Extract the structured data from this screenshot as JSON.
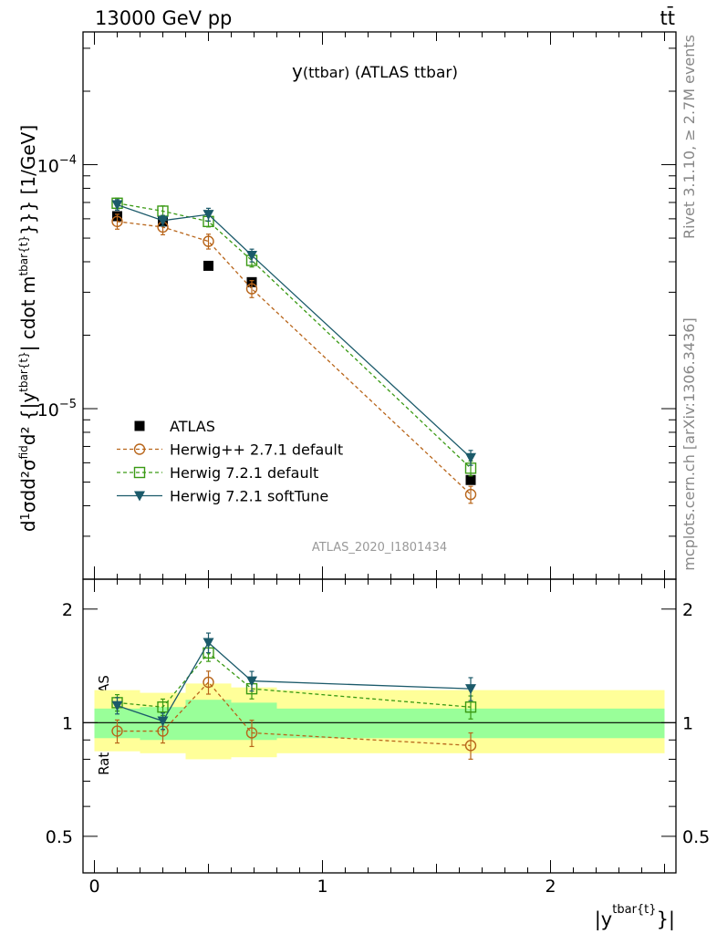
{
  "header": {
    "left": "13000 GeV pp",
    "right": "tt̄"
  },
  "side_labels": {
    "rivet": "Rivet 3.1.10, ≥ 2.7M events",
    "mcplots": "mcplots.cern.ch [arXiv:1306.3436]"
  },
  "watermark": "ATLAS_2020_I1801434",
  "colors": {
    "atlas": "#000000",
    "herwigpp": "#b8651a",
    "herwig721": "#3a9a14",
    "softtune": "#1b5a6a",
    "band_inner": "#99ff99",
    "band_outer": "#ffff99"
  },
  "chart_data": [
    {
      "type": "scatter",
      "title_main": "y",
      "title_small": "(ttbar)",
      "title_rest": " (ATLAS ttbar)",
      "ylabel": "d1dd²σfid/d²{|ytbar{t}|} cdot mtbar{t}}}} [1/GeV]",
      "ylabel_parts": {
        "p1": "d",
        "p2": "1",
        "p3": "σ",
        "p4": "d",
        "p5": "d²σ",
        "p6": "fid",
        "p7": "d² {|y",
        "p8": "tbar{t}",
        "p9": "| cdot m",
        "p10": "tbar{t}",
        "p11": "}}} [1/GeV]"
      },
      "xlim": [
        -0.05,
        2.55
      ],
      "ylim": [
        2e-06,
        0.00035
      ],
      "log_y": true,
      "y_ticks": [
        {
          "value": 0.0001,
          "mant": "10",
          "exp": "−4"
        },
        {
          "value": 1e-05,
          "mant": "10",
          "exp": "−5"
        }
      ],
      "legend": {
        "placement": "lower-left",
        "entries": [
          {
            "key": "atlas",
            "label": "ATLAS"
          },
          {
            "key": "herwigpp",
            "label": "Herwig++ 2.7.1 default"
          },
          {
            "key": "herwig721",
            "label": "Herwig 7.2.1 default"
          },
          {
            "key": "softtune",
            "label": "Herwig 7.2.1 softTune"
          }
        ]
      },
      "x": [
        0.1,
        0.3,
        0.5,
        0.69,
        1.65
      ],
      "x_edges": [
        0.0,
        0.2,
        0.4,
        0.6,
        0.8,
        2.5
      ],
      "series": [
        {
          "key": "atlas",
          "name": "ATLAS",
          "marker": "square-filled",
          "line": "none",
          "values": [
            6.15e-05,
            5.85e-05,
            3.85e-05,
            3.3e-05,
            5.1e-06
          ]
        },
        {
          "key": "herwigpp",
          "name": "Herwig++ 2.7.1 default",
          "marker": "circle-open",
          "line": "dashed",
          "values": [
            5.85e-05,
            5.55e-05,
            4.85e-05,
            3.1e-05,
            4.45e-06
          ],
          "err": [
            0.07,
            0.07,
            0.07,
            0.08,
            0.08
          ]
        },
        {
          "key": "herwig721",
          "name": "Herwig 7.2.1 default",
          "marker": "square-open",
          "line": "dashed",
          "values": [
            6.95e-05,
            6.45e-05,
            5.85e-05,
            4.05e-05,
            5.7e-06
          ],
          "err": [
            0.05,
            0.05,
            0.05,
            0.06,
            0.07
          ]
        },
        {
          "key": "softtune",
          "name": "Herwig 7.2.1 softTune",
          "marker": "triangle-down-filled",
          "line": "solid",
          "values": [
            6.85e-05,
            5.9e-05,
            6.25e-05,
            4.25e-05,
            6.3e-06
          ],
          "err": [
            0.05,
            0.05,
            0.06,
            0.06,
            0.07
          ]
        }
      ]
    },
    {
      "type": "scatter",
      "ylabel": "Ratio to ATLAS",
      "xlabel_main": "|y",
      "xlabel_sup": "tbar{t}",
      "xlabel_tail": "}|",
      "xlim": [
        -0.05,
        2.55
      ],
      "ylim": [
        0.4,
        2.4
      ],
      "log_y": true,
      "x_ticks": [
        0,
        1,
        2
      ],
      "y_ticks": [
        0.5,
        1,
        2
      ],
      "y_tick_labels": [
        "0.5",
        "1",
        "2"
      ],
      "reference_line": 1,
      "bands": {
        "x_edges": [
          0.0,
          0.2,
          0.4,
          0.6,
          0.8,
          2.5
        ],
        "inner": [
          [
            0.91,
            1.09
          ],
          [
            0.9,
            1.1
          ],
          [
            0.9,
            1.15
          ],
          [
            0.9,
            1.13
          ],
          [
            0.91,
            1.09
          ]
        ],
        "outer": [
          [
            0.84,
            1.22
          ],
          [
            0.83,
            1.2
          ],
          [
            0.8,
            1.27
          ],
          [
            0.81,
            1.24
          ],
          [
            0.83,
            1.22
          ]
        ]
      },
      "x": [
        0.1,
        0.3,
        0.5,
        0.69,
        1.65
      ],
      "series": [
        {
          "key": "herwigpp",
          "name": "Herwig++ 2.7.1 default",
          "marker": "circle-open",
          "line": "dashed",
          "values": [
            0.95,
            0.95,
            1.28,
            0.94,
            0.87
          ],
          "err": [
            0.07,
            0.07,
            0.07,
            0.08,
            0.08
          ]
        },
        {
          "key": "herwig721",
          "name": "Herwig 7.2.1 default",
          "marker": "square-open",
          "line": "dashed",
          "values": [
            1.13,
            1.1,
            1.53,
            1.23,
            1.1
          ],
          "err": [
            0.05,
            0.05,
            0.05,
            0.06,
            0.07
          ]
        },
        {
          "key": "softtune",
          "name": "Herwig 7.2.1 softTune",
          "marker": "triangle-down-filled",
          "line": "solid",
          "values": [
            1.11,
            1.01,
            1.63,
            1.29,
            1.23
          ],
          "err": [
            0.05,
            0.05,
            0.06,
            0.06,
            0.07
          ]
        }
      ]
    }
  ]
}
